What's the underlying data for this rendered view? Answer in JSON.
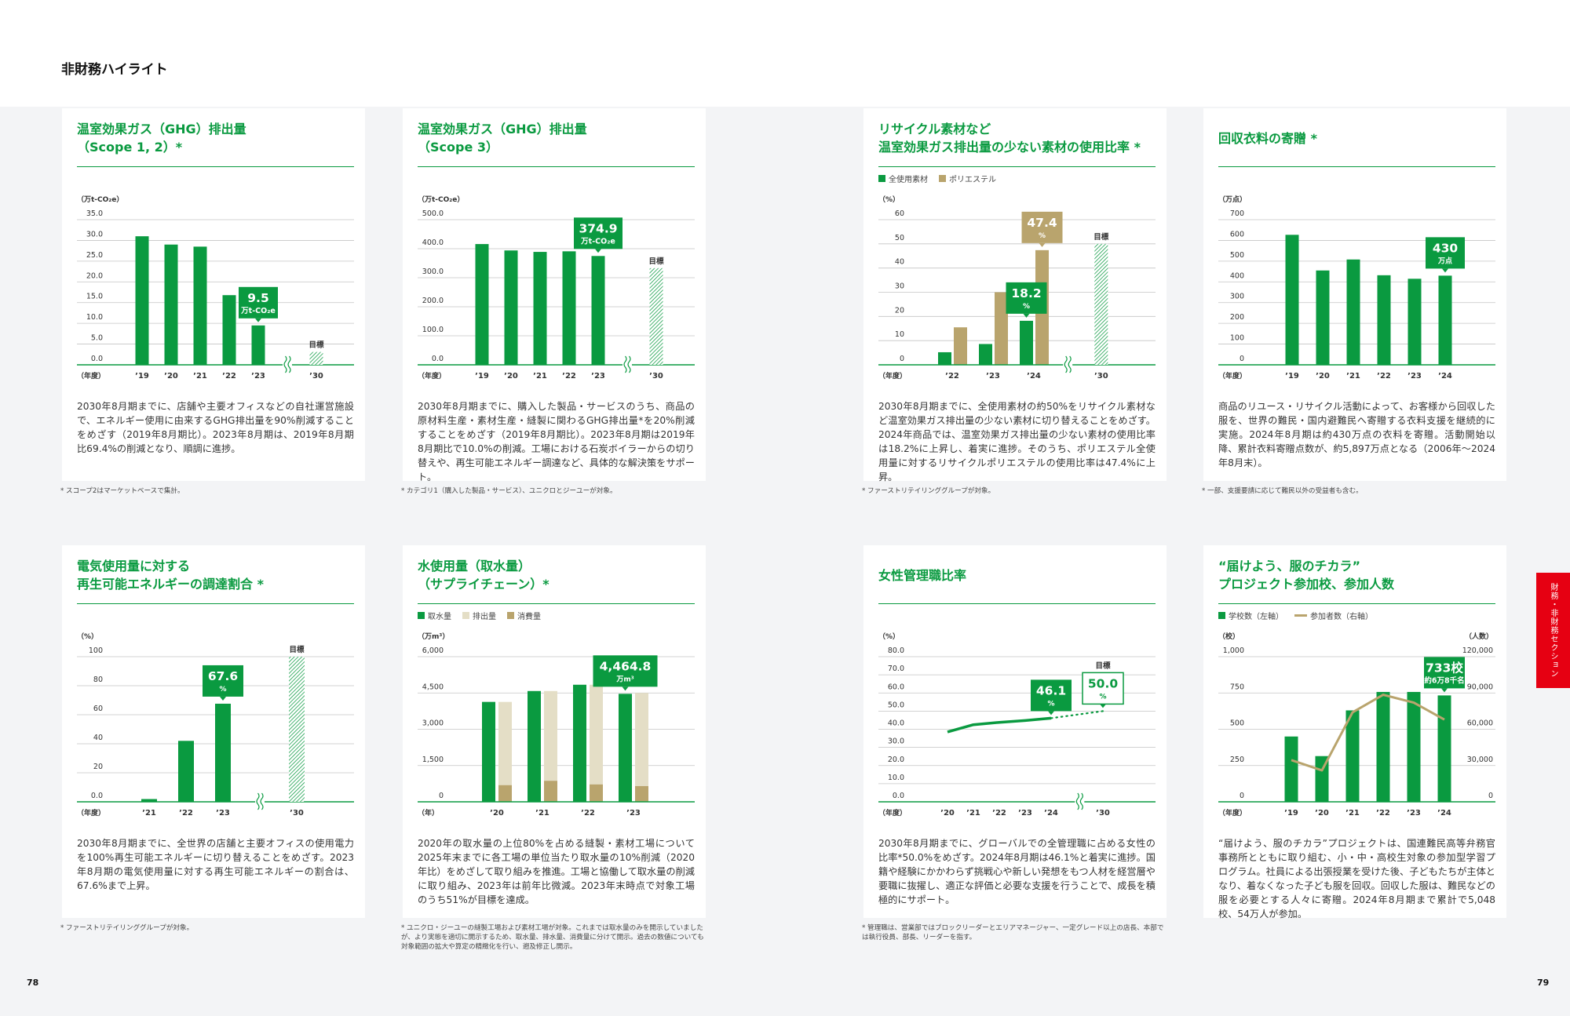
{
  "page": {
    "title": "非財務ハイライト",
    "page_left": "78",
    "page_right": "79",
    "side_tab": "財務・非財務セクション"
  },
  "colors": {
    "green": "#0a9a40",
    "tan": "#b9a46d",
    "beige": "#e4dec6",
    "side_tab": "#e60012"
  },
  "panels": [
    {
      "title_lines": [
        "温室効果ガス（GHG）排出量",
        "（Scope 1, 2）*"
      ],
      "body": "2030年8月期までに、店舗や主要オフィスなどの自社運営施設で、エネルギー使用に由来するGHG排出量を90%削減することをめざす（2019年8月期比）。2023年8月期は、2019年8月期比69.4%の削減となり、順調に進捗。",
      "footnote": "* スコープ2はマーケットベースで集計。"
    },
    {
      "title_lines": [
        "温室効果ガス（GHG）排出量",
        "（Scope 3）"
      ],
      "body": "2030年8月期までに、購入した製品・サービスのうち、商品の原材料生産・素材生産・縫製に関わるGHG排出量*を20%削減することをめざす（2019年8月期比）。2023年8月期は2019年8月期比で10.0%の削減。工場における石炭ボイラーからの切り替えや、再生可能エネルギー調達など、具体的な解決策をサポート。",
      "footnote": "* カテゴリ1（購入した製品・サービス）、ユニクロとジーユーが対象。"
    },
    {
      "title_lines": [
        "リサイクル素材など",
        "温室効果ガス排出量の少ない素材の使用比率 *"
      ],
      "body": "2030年8月期までに、全使用素材の約50%をリサイクル素材など温室効果ガス排出量の少ない素材に切り替えることをめざす。2024年商品では、温室効果ガス排出量の少ない素材の使用比率は18.2%に上昇し、着実に進捗。そのうち、ポリエステル全使用量に対するリサイクルポリエステルの使用比率は47.4%に上昇。",
      "footnote": "* ファーストリテイリンググループが対象。"
    },
    {
      "title_lines": [
        "回収衣料の寄贈 *"
      ],
      "body": "商品のリユース・リサイクル活動によって、お客様から回収した服を、世界の難民・国内避難民へ寄贈する衣料支援を継続的に実施。2024年8月期は約430万点の衣料を寄贈。活動開始以降、累計衣料寄贈点数が、約5,897万点となる（2006年～2024年8月末）。",
      "footnote": "* 一部、支援要請に応じて難民以外の受益者も含む。"
    },
    {
      "title_lines": [
        "電気使用量に対する",
        "再生可能エネルギーの調達割合 *"
      ],
      "body": "2030年8月期までに、全世界の店舗と主要オフィスの使用電力を100%再生可能エネルギーに切り替えることをめざす。2023年8月期の電気使用量に対する再生可能エネルギーの割合は、67.6%まで上昇。",
      "footnote": "* ファーストリテイリンググループが対象。"
    },
    {
      "title_lines": [
        "水使用量（取水量）",
        "（サプライチェーン）*"
      ],
      "body": "2020年の取水量の上位80%を占める縫製・素材工場について2025年末までに各工場の単位当たり取水量の10%削減（2020年比）をめざして取り組みを推進。工場と協働して取水量の削減に取り組み、2023年は前年比微減。2023年末時点で対象工場のうち51%が目標を達成。",
      "footnote": "* ユニクロ・ジーユーの縫製工場および素材工場が対象。これまでは取水量のみを開示していましたが、より実態を適切に開示するため、取水量、排水量、消費量に分けて開示。過去の数値についても対象範囲の拡大や算定の精緻化を行い、遡及修正し開示。"
    },
    {
      "title_lines": [
        "女性管理職比率"
      ],
      "body": "2030年8月期までに、グローバルでの全管理職に占める女性の比率*50.0%をめざす。2024年8月期は46.1%と着実に進捗。国籍や経験にかかわらず挑戦心や新しい発想をもつ人材を経営層や要職に抜擢し、適正な評価と必要な支援を行うことで、成長を積極的にサポート。",
      "footnote": "* 管理職は、営業部ではブロックリーダーとエリアマネージャー、一定グレード以上の店長、本部では執行役員、部長、リーダーを指す。"
    },
    {
      "title_lines": [
        "“届けよう、服のチカラ”",
        "プロジェクト参加校、参加人数"
      ],
      "body": "“届けよう、服のチカラ”プロジェクトは、国連難民高等弁務官事務所とともに取り組む、小・中・高校生対象の参加型学習プログラム。社員による出張授業を受けた後、子どもたちが主体となり、着なくなった子ども服を回収。回収した服は、難民などの服を必要とする人々に寄贈。2024年8月期まで累計で5,048校、54万人が参加。",
      "footnote": ""
    }
  ],
  "chart_data": [
    {
      "type": "bar",
      "ylabel": "（万t-CO₂e）",
      "xlabel": "（年度）",
      "ylim": [
        0,
        35
      ],
      "ticks": [
        "0.0",
        "5.0",
        "10.0",
        "15.0",
        "20.0",
        "25.0",
        "30.0",
        "35.0"
      ],
      "categories": [
        "’19",
        "’20",
        "’21",
        "’22",
        "’23"
      ],
      "series": [
        {
          "values": [
            31.0,
            29.0,
            28.5,
            16.8,
            9.5
          ],
          "color": "#0a9a40"
        }
      ],
      "target": {
        "label": "’30",
        "value": 3.1,
        "marker": "目標"
      },
      "callouts": [
        {
          "category": 4,
          "series": 0,
          "value": "9.5",
          "sub": "万t-CO₂e"
        }
      ]
    },
    {
      "type": "bar",
      "ylabel": "（万t-CO₂e）",
      "xlabel": "（年度）",
      "ylim": [
        0,
        500
      ],
      "ticks": [
        "0.0",
        "100.0",
        "200.0",
        "300.0",
        "400.0",
        "500.0"
      ],
      "categories": [
        "’19",
        "’20",
        "’21",
        "’22",
        "’23"
      ],
      "series": [
        {
          "values": [
            416,
            394,
            389,
            391,
            374.9
          ],
          "color": "#0a9a40"
        }
      ],
      "target": {
        "label": "’30",
        "value": 333,
        "marker": "目標"
      },
      "callouts": [
        {
          "category": 4,
          "series": 0,
          "value": "374.9",
          "sub": "万t-CO₂e"
        }
      ]
    },
    {
      "type": "bar",
      "ylabel": "（%）",
      "xlabel": "（年度）",
      "ylim": [
        0,
        60
      ],
      "ticks": [
        "0",
        "10",
        "20",
        "30",
        "40",
        "50",
        "60"
      ],
      "categories": [
        "’22",
        "’23",
        "’24"
      ],
      "series": [
        {
          "name": "全使用素材",
          "values": [
            5.2,
            8.6,
            18.2
          ],
          "color": "#0a9a40"
        },
        {
          "name": "ポリエステル",
          "values": [
            15.5,
            30.0,
            47.4
          ],
          "color": "#b9a46d"
        }
      ],
      "target": {
        "label": "’30",
        "value": 50,
        "marker": "目標"
      },
      "callouts": [
        {
          "category": 2,
          "series": 1,
          "value": "47.4",
          "sub": "%"
        },
        {
          "category": 2,
          "series": 0,
          "value": "18.2",
          "sub": "%"
        }
      ]
    },
    {
      "type": "bar",
      "ylabel": "（万点）",
      "xlabel": "（年度）",
      "ylim": [
        0,
        700
      ],
      "ticks": [
        "0",
        "100",
        "200",
        "300",
        "400",
        "500",
        "600",
        "700"
      ],
      "categories": [
        "’19",
        "’20",
        "’21",
        "’22",
        "’23",
        "’24"
      ],
      "series": [
        {
          "values": [
            627,
            455,
            508,
            432,
            415,
            430
          ],
          "color": "#0a9a40"
        }
      ],
      "callouts": [
        {
          "category": 5,
          "series": 0,
          "value": "430",
          "sub": "万点"
        }
      ]
    },
    {
      "type": "bar",
      "ylabel": "（%）",
      "xlabel": "（年度）",
      "ylim": [
        0,
        100
      ],
      "ticks": [
        "0.0",
        "20",
        "40",
        "60",
        "80",
        "100"
      ],
      "categories": [
        "’21",
        "’22",
        "’23"
      ],
      "series": [
        {
          "values": [
            1.9,
            42.0,
            67.6
          ],
          "color": "#0a9a40"
        }
      ],
      "target": {
        "label": "’30",
        "value": 100,
        "marker": "目標"
      },
      "callouts": [
        {
          "category": 2,
          "series": 0,
          "value": "67.6",
          "sub": "%"
        }
      ]
    },
    {
      "type": "bar",
      "ylabel": "（万m³）",
      "xlabel": "（年）",
      "ylim": [
        0,
        6000
      ],
      "ticks": [
        "0",
        "1,500",
        "3,000",
        "4,500",
        "6,000"
      ],
      "categories": [
        "’20",
        "’21",
        "’22",
        "’23"
      ],
      "series": [
        {
          "name": "取水量",
          "values": [
            4130,
            4580,
            4840,
            4464.8
          ],
          "color": "#0a9a40"
        },
        {
          "name": "排出量",
          "values": [
            3440,
            3710,
            4120,
            3850
          ],
          "color": "#e4dec6"
        },
        {
          "name": "消費量",
          "values": [
            690,
            870,
            720,
            650
          ],
          "color": "#b9a46d"
        }
      ],
      "callouts": [
        {
          "category": 3,
          "series": 0,
          "value": "4,464.8",
          "sub": "万m³"
        }
      ]
    },
    {
      "type": "line",
      "ylabel": "（%）",
      "xlabel": "（年度）",
      "ylim": [
        0,
        80
      ],
      "ticks": [
        "0.0",
        "10.0",
        "20.0",
        "30.0",
        "40.0",
        "50.0",
        "60.0",
        "70.0",
        "80.0"
      ],
      "categories": [
        "’20",
        "’21",
        "’22",
        "’23",
        "’24"
      ],
      "series": [
        {
          "values": [
            38.5,
            42.5,
            43.8,
            44.8,
            46.1
          ],
          "color": "#0a9a40"
        }
      ],
      "target": {
        "label": "’30",
        "value": 50.0,
        "marker": "目標"
      },
      "callouts": [
        {
          "category": 4,
          "series": 0,
          "value": "46.1",
          "sub": "%"
        },
        {
          "category": "target",
          "value": "50.0",
          "sub": "%",
          "style": "outline"
        }
      ]
    },
    {
      "type": "bar",
      "ylabel": "（校）",
      "ylabel_right": "（人数）",
      "xlabel": "（年度）",
      "ylim": [
        0,
        1000
      ],
      "ylim_right": [
        0,
        120000
      ],
      "ticks": [
        "0",
        "250",
        "500",
        "750",
        "1,000"
      ],
      "ticks_right": [
        "0",
        "30,000",
        "60,000",
        "90,000",
        "120,000"
      ],
      "categories": [
        "’19",
        "’20",
        "’21",
        "’22",
        "’23",
        "’24"
      ],
      "series": [
        {
          "name": "学校数（左軸）",
          "values": [
            450,
            315,
            630,
            757,
            757,
            733
          ],
          "color": "#0a9a40"
        },
        {
          "name": "参加者数（右軸）",
          "type": "line",
          "axis": "right",
          "values": [
            34500,
            26000,
            74000,
            88500,
            82000,
            68000
          ],
          "color": "#b9a46d"
        }
      ],
      "callouts": [
        {
          "category": 5,
          "series": 0,
          "value": "733校",
          "sub": "約6万8千名"
        }
      ]
    }
  ]
}
